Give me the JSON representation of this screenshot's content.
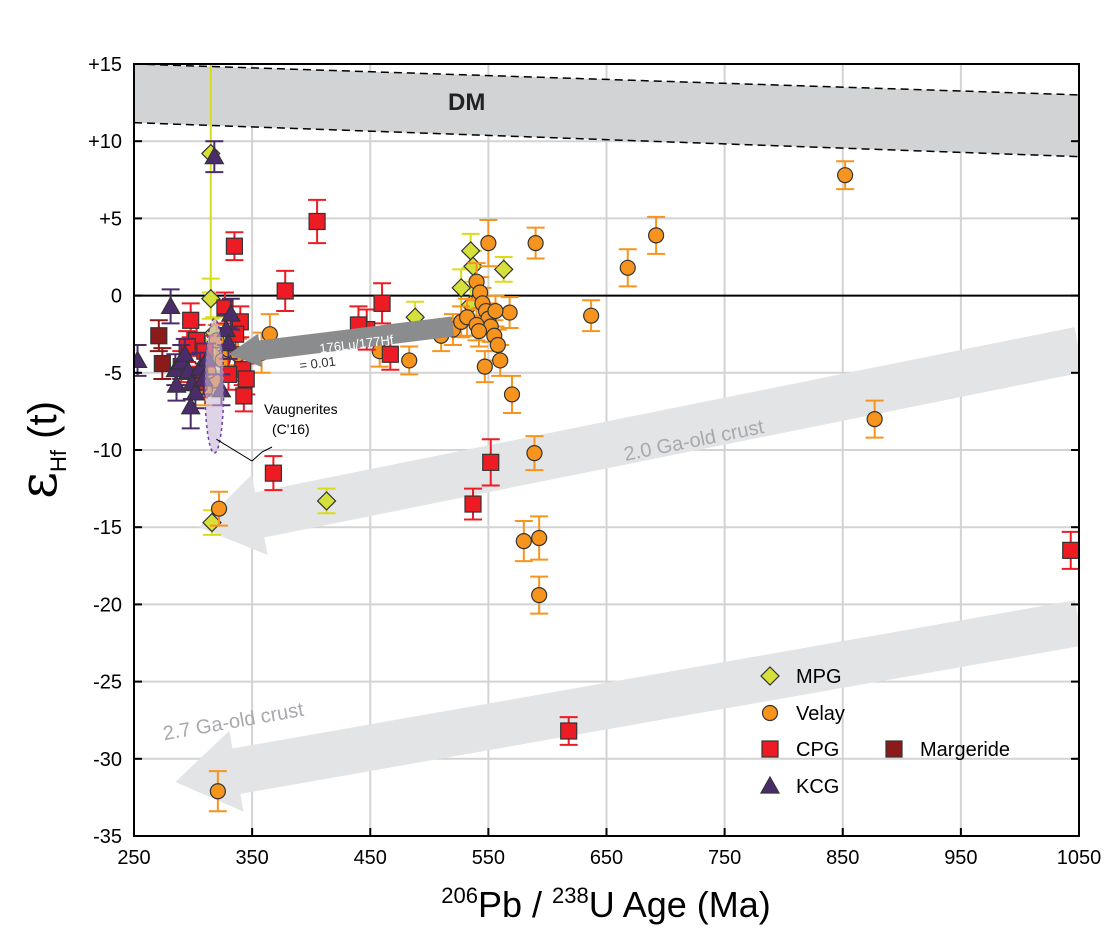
{
  "chart_data": {
    "type": "scatter",
    "xlabel": {
      "sup1": "206",
      "el1": "Pb / ",
      "sup2": "238",
      "el2": "U  Age (Ma)"
    },
    "ylabel": {
      "main": "ε",
      "sub": "Hf",
      "tail": " (t)"
    },
    "xlim": [
      250,
      1050
    ],
    "ylim": [
      -35,
      15
    ],
    "x_ticks": [
      250,
      350,
      450,
      550,
      650,
      750,
      850,
      950,
      1050
    ],
    "x_tick_labels": [
      "250",
      "350",
      "450",
      "550",
      "650",
      "750",
      "850",
      "950",
      "1050"
    ],
    "y_ticks": [
      15,
      10,
      5,
      0,
      -5,
      -10,
      -15,
      -20,
      -25,
      -30,
      -35
    ],
    "y_tick_labels": [
      "+15",
      "+10",
      "+5",
      "0",
      "-5",
      "-10",
      "-15",
      "-20",
      "-25",
      "-30",
      "-35"
    ],
    "grid": true,
    "dm_band": {
      "label": "DM",
      "upper": [
        [
          250,
          15.0
        ],
        [
          1050,
          13.0
        ]
      ],
      "lower": [
        [
          250,
          11.2
        ],
        [
          1050,
          9.0
        ]
      ],
      "color": "#d2d3d5"
    },
    "crust_arrows": [
      {
        "label": "2.0 Ga-old crust",
        "from": [
          1050,
          -3.5
        ],
        "to": [
          305,
          -15.0
        ],
        "color": "#e3e4e5"
      },
      {
        "label": "2.7 Ga-old crust",
        "from": [
          1050,
          -21.2
        ],
        "to": [
          285,
          -31.5
        ],
        "color": "#e3e4e5"
      }
    ],
    "lu_hf_arrow": {
      "label_line1": "176Lu/177Hf",
      "label_line2": "= 0.01",
      "from": [
        520,
        -2.0
      ],
      "to": [
        330,
        -3.8
      ],
      "color": "#8b8c8e"
    },
    "vaugnerites": {
      "label_line1": "Vaugnerites",
      "label_line2": "(C'16)",
      "center": [
        318,
        -5.5
      ],
      "x_halfwidth": 8,
      "y_top": -1.5,
      "y_bottom": -10.2
    },
    "colors": {
      "MPG": "#d6e03a",
      "Velay": "#f7941d",
      "CPG": "#ed1c24",
      "Margeride": "#8b1a1a",
      "KCG": "#4b2c6b",
      "err_MPG": "#d9dd18",
      "err_Velay": "#f7941d",
      "err_CPG": "#ed1c24",
      "err_Margeride": "#8b1a1a",
      "err_KCG": "#4b2c6b"
    },
    "legend": {
      "items": [
        {
          "name": "MPG",
          "marker": "diamond"
        },
        {
          "name": "Velay",
          "marker": "circle"
        },
        {
          "name": "CPG",
          "marker": "square"
        },
        {
          "name": "Margeride",
          "marker": "square"
        },
        {
          "name": "KCG",
          "marker": "triangle"
        }
      ]
    },
    "series": [
      {
        "name": "MPG",
        "marker": "diamond",
        "points": [
          [
            315,
            -0.2,
            1.3
          ],
          [
            315,
            9.2,
            9.0
          ],
          [
            413,
            -13.3,
            0.8
          ],
          [
            316,
            -14.7,
            0.8
          ],
          [
            488,
            -1.4,
            1.0
          ],
          [
            535,
            2.9,
            1.1
          ],
          [
            537,
            1.9,
            1.0
          ],
          [
            563,
            1.7,
            0.8
          ],
          [
            527,
            0.5,
            1.2
          ],
          [
            535,
            -0.6,
            1.0
          ],
          [
            318,
            -2.4,
            1.0
          ],
          [
            318,
            -3.9,
            1.0
          ]
        ]
      },
      {
        "name": "Velay",
        "marker": "circle",
        "points": [
          [
            852,
            7.8,
            0.9
          ],
          [
            692,
            3.9,
            1.2
          ],
          [
            668,
            1.8,
            1.2
          ],
          [
            590,
            3.4,
            1.0
          ],
          [
            550,
            3.4,
            1.5
          ],
          [
            637,
            -1.3,
            1.0
          ],
          [
            877,
            -8.0,
            1.2
          ],
          [
            589,
            -10.2,
            1.1
          ],
          [
            570,
            -6.4,
            1.2
          ],
          [
            580,
            -15.9,
            1.3
          ],
          [
            593,
            -15.7,
            1.4
          ],
          [
            593,
            -19.4,
            1.2
          ],
          [
            322,
            -13.8,
            1.1
          ],
          [
            321,
            -32.1,
            1.3
          ],
          [
            365,
            -2.5,
            1.3
          ],
          [
            358,
            -3.7,
            1.3
          ],
          [
            458,
            -3.6,
            1.0
          ],
          [
            483,
            -4.2,
            0.9
          ],
          [
            510,
            -2.6,
            1.0
          ],
          [
            520,
            -2.2,
            1.0
          ],
          [
            527,
            -1.7,
            1.0
          ],
          [
            532,
            -1.4,
            1.2
          ],
          [
            540,
            0.9,
            1.2
          ],
          [
            543,
            0.2,
            1.0
          ],
          [
            545,
            -0.5,
            1.0
          ],
          [
            548,
            -1.0,
            1.0
          ],
          [
            550,
            -1.5,
            1.0
          ],
          [
            552,
            -2.0,
            1.0
          ],
          [
            555,
            -2.6,
            1.0
          ],
          [
            558,
            -3.2,
            1.0
          ],
          [
            547,
            -4.6,
            1.0
          ],
          [
            560,
            -4.2,
            1.0
          ],
          [
            540,
            -1.9,
            1.0
          ],
          [
            568,
            -1.1,
            1.0
          ],
          [
            542,
            -2.3,
            1.0
          ],
          [
            556,
            -1.0,
            1.0
          ],
          [
            320,
            -2.9,
            1.0
          ],
          [
            325,
            -4.2,
            1.0
          ],
          [
            330,
            -3.5,
            1.0
          ],
          [
            318,
            -5.5,
            1.0
          ],
          [
            313,
            -4.9,
            1.0
          ],
          [
            338,
            -3.8,
            1.0
          ],
          [
            310,
            -6.1,
            1.0
          ]
        ]
      },
      {
        "name": "CPG",
        "marker": "square",
        "points": [
          [
            405,
            4.8,
            1.4
          ],
          [
            335,
            3.2,
            0.9
          ],
          [
            378,
            0.3,
            1.3
          ],
          [
            460,
            -0.5,
            1.3
          ],
          [
            447,
            -2.2,
            1.3
          ],
          [
            440,
            -1.9,
            1.2
          ],
          [
            467,
            -3.8,
            1.0
          ],
          [
            340,
            -1.7,
            1.0
          ],
          [
            336,
            -2.5,
            1.1
          ],
          [
            342,
            -4.8,
            1.0
          ],
          [
            345,
            -5.4,
            1.0
          ],
          [
            343,
            -6.5,
            1.0
          ],
          [
            368,
            -11.5,
            1.1
          ],
          [
            552,
            -10.8,
            1.5
          ],
          [
            537,
            -13.5,
            1.0
          ],
          [
            618,
            -28.2,
            0.9
          ],
          [
            1043,
            -16.5,
            1.2
          ],
          [
            298,
            -1.6,
            1.1
          ],
          [
            303,
            -2.9,
            1.0
          ],
          [
            310,
            -3.6,
            1.0
          ],
          [
            330,
            -5.1,
            1.0
          ],
          [
            290,
            -4.6,
            1.0
          ],
          [
            305,
            -5.6,
            1.0
          ],
          [
            327,
            -0.8,
            1.0
          ],
          [
            295,
            -3.3,
            1.0
          ]
        ]
      },
      {
        "name": "Margeride",
        "marker": "square",
        "points": [
          [
            271,
            -2.6,
            1.0
          ],
          [
            274,
            -4.4,
            1.0
          ]
        ]
      },
      {
        "name": "KCG",
        "marker": "triangle",
        "points": [
          [
            253,
            -4.2,
            1.0
          ],
          [
            281,
            -0.7,
            1.1
          ],
          [
            318,
            9.0,
            1.0
          ],
          [
            285,
            -4.8,
            1.0
          ],
          [
            290,
            -4.3,
            1.1
          ],
          [
            293,
            -3.8,
            1.0
          ],
          [
            296,
            -4.9,
            1.1
          ],
          [
            299,
            -5.7,
            1.0
          ],
          [
            302,
            -6.3,
            1.0
          ],
          [
            298,
            -7.2,
            1.4
          ],
          [
            306,
            -4.7,
            1.0
          ],
          [
            309,
            -5.4,
            1.0
          ],
          [
            312,
            -4.1,
            1.0
          ],
          [
            286,
            -5.8,
            1.0
          ],
          [
            332,
            -1.2,
            1.0
          ],
          [
            328,
            -2.2,
            1.0
          ],
          [
            330,
            -3.1,
            1.0
          ],
          [
            324,
            -6.1,
            1.0
          ]
        ]
      }
    ]
  }
}
